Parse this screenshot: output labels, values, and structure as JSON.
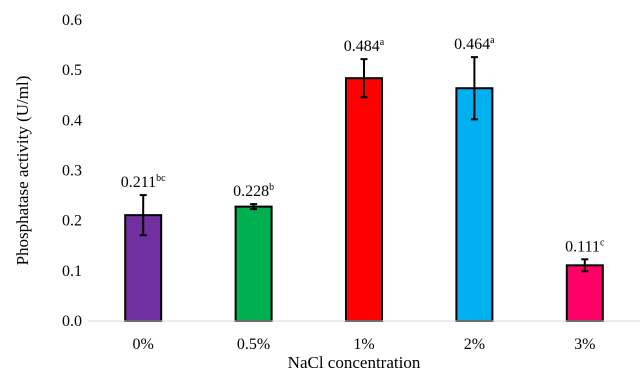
{
  "chart_data": {
    "type": "bar",
    "title": "",
    "xlabel": "NaCl concentration",
    "ylabel": "Phosphatase activity (U/ml)",
    "ylim": [
      0,
      0.6
    ],
    "yticks": [
      "0.0",
      "0.1",
      "0.2",
      "0.3",
      "0.4",
      "0.5",
      "0.6"
    ],
    "yticks_values": [
      0,
      0.1,
      0.2,
      0.3,
      0.4,
      0.5,
      0.6
    ],
    "grid": false,
    "legend": "none",
    "categories": [
      "0%",
      "0.5%",
      "1%",
      "2%",
      "3%"
    ],
    "values": [
      0.211,
      0.228,
      0.484,
      0.464,
      0.111
    ],
    "errors": [
      0.04,
      0.005,
      0.038,
      0.062,
      0.012
    ],
    "labels": [
      "0.211",
      "0.228",
      "0.484",
      "0.464",
      "0.111"
    ],
    "label_superscripts": [
      "bc",
      "b",
      "a",
      "a",
      "c"
    ],
    "colors": [
      "#7030a0",
      "#00b050",
      "#ff0000",
      "#00b0f0",
      "#ff0066"
    ]
  }
}
